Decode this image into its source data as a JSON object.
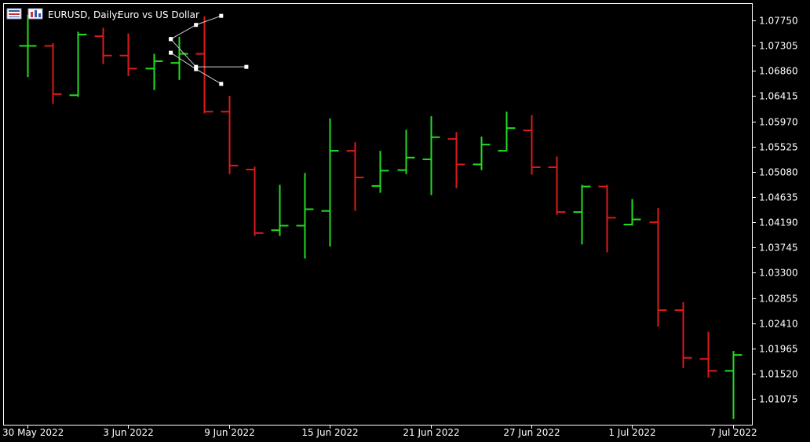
{
  "header": {
    "symbol_timeframe": "EURUSD, Daily:",
    "description": "Euro vs US Dollar"
  },
  "colors": {
    "background": "#000000",
    "frame": "#ffffff",
    "bull": "#22dd22",
    "bear": "#dd1a1a",
    "text": "#ffffff",
    "fork": "#cfcfcf"
  },
  "icons": [
    "chart-window-icon",
    "chart-toolbar-icon"
  ],
  "chart_data": {
    "type": "ohlc-bar",
    "grid": false,
    "y_axis_position": "right",
    "ylim": [
      1.0062,
      1.0804
    ],
    "y_ticks": [
      "1.07750",
      "1.07305",
      "1.06860",
      "1.06415",
      "1.05970",
      "1.05525",
      "1.05080",
      "1.04635",
      "1.04190",
      "1.03745",
      "1.03300",
      "1.02855",
      "1.02410",
      "1.01965",
      "1.01520",
      "1.01075"
    ],
    "x_ticks": [
      {
        "bar": 0,
        "label": "30 May 2022"
      },
      {
        "bar": 4,
        "label": "3 Jun 2022"
      },
      {
        "bar": 8,
        "label": "9 Jun 2022"
      },
      {
        "bar": 12,
        "label": "15 Jun 2022"
      },
      {
        "bar": 16,
        "label": "21 Jun 2022"
      },
      {
        "bar": 20,
        "label": "27 Jun 2022"
      },
      {
        "bar": 24,
        "label": "1 Jul 2022"
      },
      {
        "bar": 28,
        "label": "7 Jul 2022"
      }
    ],
    "bars": [
      {
        "o": 1.073,
        "h": 1.0785,
        "l": 1.0675,
        "c": 1.073
      },
      {
        "o": 1.073,
        "h": 1.0735,
        "l": 1.0628,
        "c": 1.0645
      },
      {
        "o": 1.0643,
        "h": 1.0755,
        "l": 1.064,
        "c": 1.075
      },
      {
        "o": 1.0747,
        "h": 1.0762,
        "l": 1.0698,
        "c": 1.0713
      },
      {
        "o": 1.0713,
        "h": 1.0752,
        "l": 1.0677,
        "c": 1.069
      },
      {
        "o": 1.069,
        "h": 1.0716,
        "l": 1.0652,
        "c": 1.0703
      },
      {
        "o": 1.07,
        "h": 1.0746,
        "l": 1.067,
        "c": 1.0716
      },
      {
        "o": 1.0716,
        "h": 1.0782,
        "l": 1.0611,
        "c": 1.0614
      },
      {
        "o": 1.0614,
        "h": 1.0642,
        "l": 1.0504,
        "c": 1.0519
      },
      {
        "o": 1.0512,
        "h": 1.0517,
        "l": 1.0395,
        "c": 1.04
      },
      {
        "o": 1.0405,
        "h": 1.0485,
        "l": 1.0395,
        "c": 1.0413
      },
      {
        "o": 1.0413,
        "h": 1.0506,
        "l": 1.0355,
        "c": 1.0442
      },
      {
        "o": 1.0439,
        "h": 1.0602,
        "l": 1.0376,
        "c": 1.0545
      },
      {
        "o": 1.0545,
        "h": 1.056,
        "l": 1.0439,
        "c": 1.0498
      },
      {
        "o": 1.0483,
        "h": 1.0545,
        "l": 1.0471,
        "c": 1.051
      },
      {
        "o": 1.0511,
        "h": 1.0582,
        "l": 1.0504,
        "c": 1.0533
      },
      {
        "o": 1.053,
        "h": 1.0606,
        "l": 1.0467,
        "c": 1.0569
      },
      {
        "o": 1.0566,
        "h": 1.0578,
        "l": 1.0479,
        "c": 1.0521
      },
      {
        "o": 1.0521,
        "h": 1.057,
        "l": 1.0511,
        "c": 1.0556
      },
      {
        "o": 1.0545,
        "h": 1.0614,
        "l": 1.0545,
        "c": 1.0585
      },
      {
        "o": 1.0581,
        "h": 1.0608,
        "l": 1.0503,
        "c": 1.0516
      },
      {
        "o": 1.0516,
        "h": 1.0535,
        "l": 1.0432,
        "c": 1.0437
      },
      {
        "o": 1.0437,
        "h": 1.0485,
        "l": 1.038,
        "c": 1.0482
      },
      {
        "o": 1.0482,
        "h": 1.0485,
        "l": 1.0366,
        "c": 1.0427
      },
      {
        "o": 1.0415,
        "h": 1.046,
        "l": 1.0413,
        "c": 1.0424
      },
      {
        "o": 1.0419,
        "h": 1.0444,
        "l": 1.0235,
        "c": 1.0264
      },
      {
        "o": 1.0264,
        "h": 1.0278,
        "l": 1.0162,
        "c": 1.018
      },
      {
        "o": 1.0178,
        "h": 1.0226,
        "l": 1.0145,
        "c": 1.0157
      },
      {
        "o": 1.0157,
        "h": 1.0192,
        "l": 1.0072,
        "c": 1.0185
      }
    ],
    "annotations": [
      {
        "type": "fork-lines",
        "segments": [
          [
            [
              6,
              1.0742
            ],
            [
              7,
              1.0767
            ],
            [
              8,
              1.0783
            ]
          ],
          [
            [
              6,
              1.0742
            ],
            [
              7,
              1.0693
            ],
            [
              9,
              1.0693
            ]
          ],
          [
            [
              6,
              1.0718
            ],
            [
              7,
              1.0689
            ],
            [
              8,
              1.0663
            ]
          ]
        ]
      }
    ]
  }
}
